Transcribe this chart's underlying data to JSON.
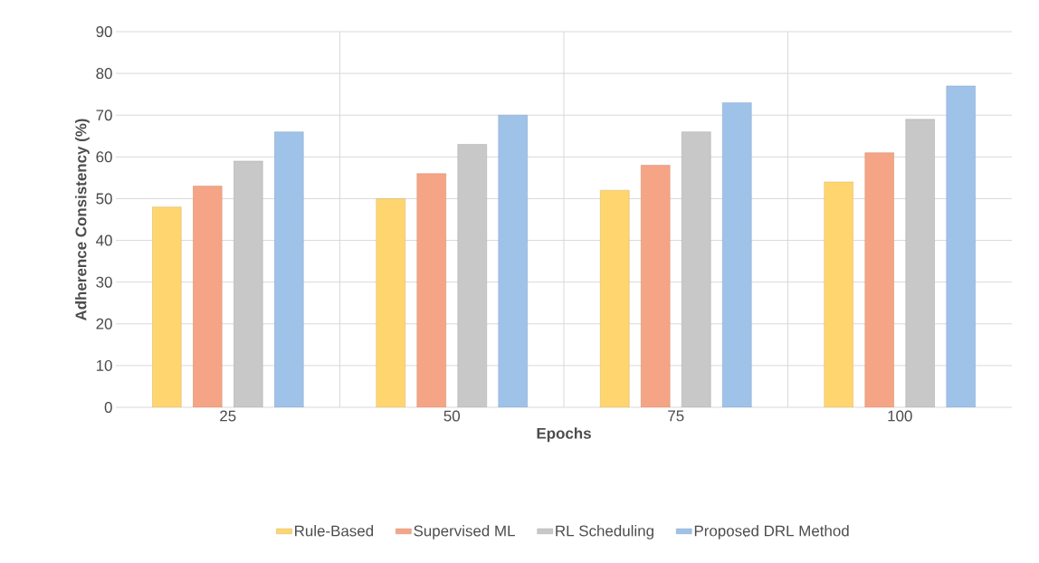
{
  "chart_data": {
    "type": "bar",
    "xlabel": "Epochs",
    "ylabel": "Adherence Consistency (%)",
    "categories": [
      "25",
      "50",
      "75",
      "100"
    ],
    "series": [
      {
        "name": "Rule-Based",
        "color": "#ffd570",
        "values": [
          48,
          50,
          52,
          54
        ]
      },
      {
        "name": "Supervised ML",
        "color": "#f5a585",
        "values": [
          53,
          56,
          58,
          61
        ]
      },
      {
        "name": "RL Scheduling",
        "color": "#c8c8c8",
        "values": [
          59,
          63,
          66,
          69
        ]
      },
      {
        "name": "Proposed DRL Method",
        "color": "#9fc2e8",
        "values": [
          66,
          70,
          73,
          77
        ]
      }
    ],
    "ylim": [
      0,
      90
    ],
    "yticks": [
      0,
      10,
      20,
      30,
      40,
      50,
      60,
      70,
      80,
      90
    ],
    "grid": "y",
    "legend": "bottom"
  }
}
